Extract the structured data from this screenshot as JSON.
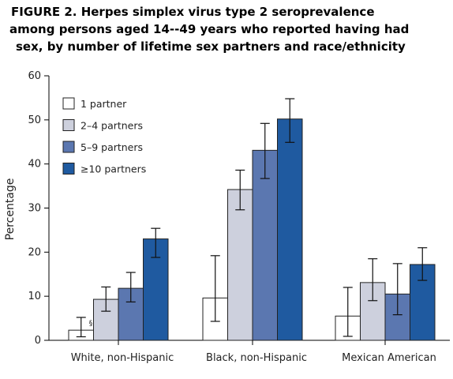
{
  "figure_title_lines": [
    "FIGURE 2. Herpes simplex virus type 2 seroprevalence",
    "among persons aged 14--49 years who reported having had",
    "sex, by number of lifetime sex partners and race/ethnicity"
  ],
  "chart_data": {
    "type": "bar",
    "title": "FIGURE 2. Herpes simplex virus type 2 seroprevalence among persons aged 14--49 years who reported having had sex, by number of lifetime sex partners and race/ethnicity",
    "xlabel": "",
    "ylabel": "Percentage",
    "ylim": [
      0,
      60
    ],
    "yticks": [
      0,
      10,
      20,
      30,
      40,
      50,
      60
    ],
    "categories": [
      "White, non-Hispanic",
      "Black, non-Hispanic",
      "Mexican American"
    ],
    "series": [
      {
        "name": "1 partner",
        "color": "#ffffff",
        "values": [
          2.3,
          9.6,
          5.5
        ],
        "ci_low": [
          0.8,
          4.3,
          0.9
        ],
        "ci_high": [
          5.2,
          19.2,
          12.0
        ]
      },
      {
        "name": "2–4 partners",
        "color": "#cdd0dd",
        "values": [
          9.3,
          34.2,
          13.1
        ],
        "ci_low": [
          6.6,
          29.6,
          9.0
        ],
        "ci_high": [
          12.1,
          38.6,
          18.5
        ]
      },
      {
        "name": "5–9 partners",
        "color": "#5b77b0",
        "values": [
          11.8,
          43.1,
          10.5
        ],
        "ci_low": [
          8.7,
          36.7,
          5.8
        ],
        "ci_high": [
          15.4,
          49.2,
          17.4
        ]
      },
      {
        "name": "≥10 partners",
        "color": "#1f5aa0",
        "values": [
          23.0,
          50.2,
          17.2
        ],
        "ci_low": [
          18.8,
          44.9,
          13.6
        ],
        "ci_high": [
          25.4,
          54.8,
          21.0
        ]
      }
    ],
    "annotations": [
      {
        "text": "§",
        "category": "White, non-Hispanic",
        "series": "1 partner"
      }
    ],
    "legend_position": "top-left",
    "grid": false
  }
}
